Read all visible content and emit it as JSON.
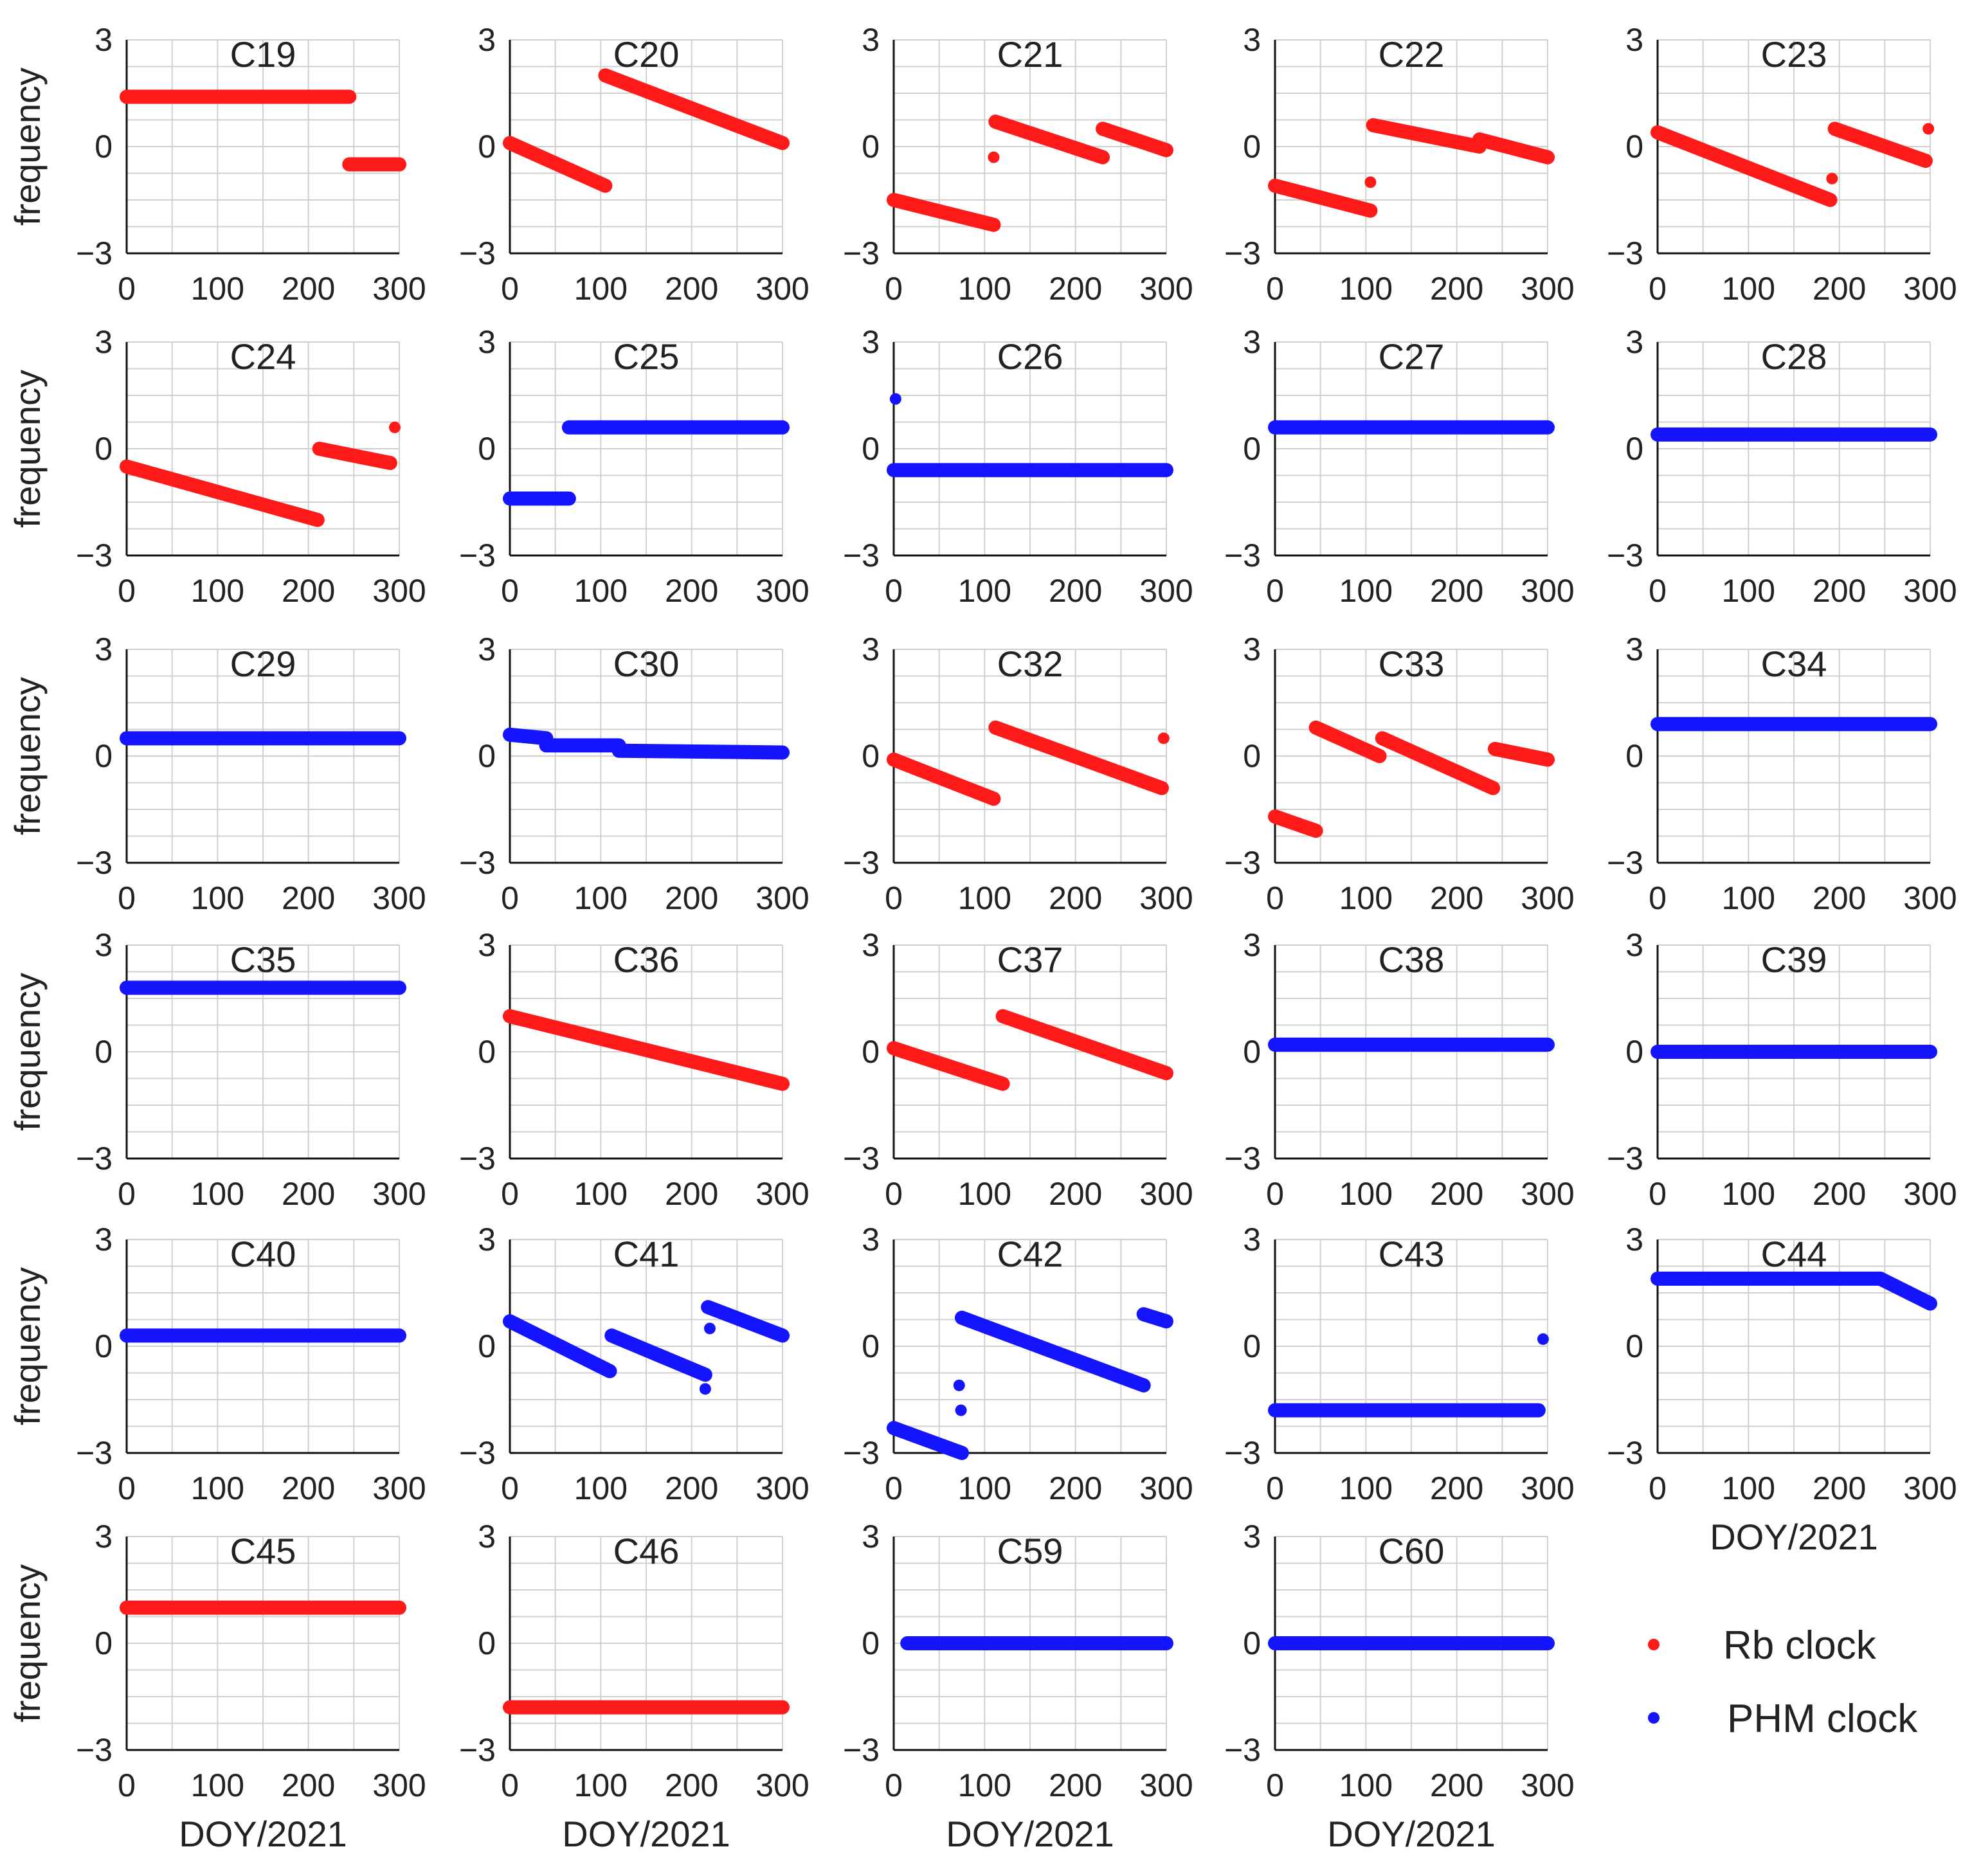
{
  "figure": {
    "xlabel": "DOY/2021",
    "ylabel": "frequency",
    "y_ticks": [
      "3",
      "0",
      "−3"
    ],
    "x_ticks": [
      "0",
      "100",
      "200",
      "300"
    ]
  },
  "legend": {
    "items": [
      {
        "label": "Rb clock",
        "color": "#ff1a1a"
      },
      {
        "label": "PHM clock",
        "color": "#1414ff"
      }
    ]
  },
  "colors": {
    "rb": "#ff1a1a",
    "phm": "#1414ff",
    "grid": "#cfcfcf",
    "axis": "#111111"
  },
  "chart_data": [
    {
      "type": "scatter",
      "title": "C19",
      "clock": "rb",
      "xlim": [
        0,
        300
      ],
      "ylim": [
        -3,
        3
      ],
      "segments": [
        [
          0,
          1.4,
          245,
          1.4
        ],
        [
          245,
          -0.5,
          300,
          -0.5
        ]
      ]
    },
    {
      "type": "scatter",
      "title": "C20",
      "clock": "rb",
      "xlim": [
        0,
        300
      ],
      "ylim": [
        -3,
        3
      ],
      "segments": [
        [
          0,
          0.1,
          105,
          -1.1
        ],
        [
          105,
          2.0,
          300,
          0.1
        ]
      ]
    },
    {
      "type": "scatter",
      "title": "C21",
      "clock": "rb",
      "xlim": [
        0,
        300
      ],
      "ylim": [
        -3,
        3
      ],
      "segments": [
        [
          0,
          -1.5,
          110,
          -2.2
        ],
        [
          112,
          0.7,
          230,
          -0.3
        ],
        [
          230,
          0.5,
          300,
          -0.1
        ]
      ],
      "points": [
        [
          110,
          -0.3
        ]
      ]
    },
    {
      "type": "scatter",
      "title": "C22",
      "clock": "rb",
      "xlim": [
        0,
        300
      ],
      "ylim": [
        -3,
        3
      ],
      "segments": [
        [
          0,
          -1.1,
          105,
          -1.8
        ],
        [
          108,
          0.6,
          225,
          0.0
        ],
        [
          225,
          0.2,
          300,
          -0.3
        ]
      ],
      "points": [
        [
          105,
          -1.0
        ]
      ]
    },
    {
      "type": "scatter",
      "title": "C23",
      "clock": "rb",
      "xlim": [
        0,
        300
      ],
      "ylim": [
        -3,
        3
      ],
      "segments": [
        [
          0,
          0.4,
          190,
          -1.5
        ],
        [
          195,
          0.5,
          295,
          -0.4
        ]
      ],
      "points": [
        [
          192,
          -0.9
        ],
        [
          298,
          0.5
        ]
      ]
    },
    {
      "type": "scatter",
      "title": "C24",
      "clock": "rb",
      "xlim": [
        0,
        300
      ],
      "ylim": [
        -3,
        3
      ],
      "segments": [
        [
          0,
          -0.5,
          210,
          -2.0
        ],
        [
          212,
          0.0,
          290,
          -0.4
        ]
      ],
      "points": [
        [
          295,
          0.6
        ]
      ]
    },
    {
      "type": "scatter",
      "title": "C25",
      "clock": "phm",
      "xlim": [
        0,
        300
      ],
      "ylim": [
        -3,
        3
      ],
      "segments": [
        [
          0,
          -1.4,
          65,
          -1.4
        ],
        [
          65,
          0.6,
          300,
          0.6
        ]
      ]
    },
    {
      "type": "scatter",
      "title": "C26",
      "clock": "phm",
      "xlim": [
        0,
        300
      ],
      "ylim": [
        -3,
        3
      ],
      "segments": [
        [
          0,
          -0.6,
          300,
          -0.6
        ]
      ],
      "points": [
        [
          2,
          1.4
        ]
      ]
    },
    {
      "type": "scatter",
      "title": "C27",
      "clock": "phm",
      "xlim": [
        0,
        300
      ],
      "ylim": [
        -3,
        3
      ],
      "segments": [
        [
          0,
          0.6,
          300,
          0.6
        ]
      ]
    },
    {
      "type": "scatter",
      "title": "C28",
      "clock": "phm",
      "xlim": [
        0,
        300
      ],
      "ylim": [
        -3,
        3
      ],
      "segments": [
        [
          0,
          0.4,
          300,
          0.4
        ]
      ]
    },
    {
      "type": "scatter",
      "title": "C29",
      "clock": "phm",
      "xlim": [
        0,
        300
      ],
      "ylim": [
        -3,
        3
      ],
      "segments": [
        [
          0,
          0.5,
          300,
          0.5
        ]
      ]
    },
    {
      "type": "scatter",
      "title": "C30",
      "clock": "phm",
      "xlim": [
        0,
        300
      ],
      "ylim": [
        -3,
        3
      ],
      "segments": [
        [
          0,
          0.6,
          40,
          0.5
        ],
        [
          40,
          0.3,
          120,
          0.3
        ],
        [
          120,
          0.15,
          300,
          0.1
        ]
      ]
    },
    {
      "type": "scatter",
      "title": "C32",
      "clock": "rb",
      "xlim": [
        0,
        300
      ],
      "ylim": [
        -3,
        3
      ],
      "segments": [
        [
          0,
          -0.1,
          110,
          -1.2
        ],
        [
          112,
          0.8,
          295,
          -0.9
        ]
      ],
      "points": [
        [
          297,
          0.5
        ]
      ]
    },
    {
      "type": "scatter",
      "title": "C33",
      "clock": "rb",
      "xlim": [
        0,
        300
      ],
      "ylim": [
        -3,
        3
      ],
      "segments": [
        [
          0,
          -1.7,
          45,
          -2.1
        ],
        [
          45,
          0.8,
          115,
          0.0
        ],
        [
          118,
          0.5,
          240,
          -0.9
        ],
        [
          242,
          0.2,
          300,
          -0.1
        ]
      ]
    },
    {
      "type": "scatter",
      "title": "C34",
      "clock": "phm",
      "xlim": [
        0,
        300
      ],
      "ylim": [
        -3,
        3
      ],
      "segments": [
        [
          0,
          0.9,
          300,
          0.9
        ]
      ]
    },
    {
      "type": "scatter",
      "title": "C35",
      "clock": "phm",
      "xlim": [
        0,
        300
      ],
      "ylim": [
        -3,
        3
      ],
      "segments": [
        [
          0,
          1.8,
          300,
          1.8
        ]
      ]
    },
    {
      "type": "scatter",
      "title": "C36",
      "clock": "rb",
      "xlim": [
        0,
        300
      ],
      "ylim": [
        -3,
        3
      ],
      "segments": [
        [
          0,
          1.0,
          300,
          -0.9
        ]
      ]
    },
    {
      "type": "scatter",
      "title": "C37",
      "clock": "rb",
      "xlim": [
        0,
        300
      ],
      "ylim": [
        -3,
        3
      ],
      "segments": [
        [
          0,
          0.1,
          120,
          -0.9
        ],
        [
          120,
          1.0,
          300,
          -0.6
        ]
      ]
    },
    {
      "type": "scatter",
      "title": "C38",
      "clock": "phm",
      "xlim": [
        0,
        300
      ],
      "ylim": [
        -3,
        3
      ],
      "segments": [
        [
          0,
          0.2,
          300,
          0.2
        ]
      ]
    },
    {
      "type": "scatter",
      "title": "C39",
      "clock": "phm",
      "xlim": [
        0,
        300
      ],
      "ylim": [
        -3,
        3
      ],
      "segments": [
        [
          0,
          0.0,
          300,
          0.0
        ]
      ]
    },
    {
      "type": "scatter",
      "title": "C40",
      "clock": "phm",
      "xlim": [
        0,
        300
      ],
      "ylim": [
        -3,
        3
      ],
      "segments": [
        [
          0,
          0.3,
          300,
          0.3
        ]
      ]
    },
    {
      "type": "scatter",
      "title": "C41",
      "clock": "phm",
      "xlim": [
        0,
        300
      ],
      "ylim": [
        -3,
        3
      ],
      "segments": [
        [
          0,
          0.7,
          110,
          -0.7
        ],
        [
          112,
          0.3,
          215,
          -0.8
        ],
        [
          218,
          1.1,
          300,
          0.3
        ]
      ],
      "points": [
        [
          215,
          -1.2
        ],
        [
          220,
          0.5
        ]
      ]
    },
    {
      "type": "scatter",
      "title": "C42",
      "clock": "phm",
      "xlim": [
        0,
        300
      ],
      "ylim": [
        -3,
        3
      ],
      "segments": [
        [
          0,
          -2.3,
          75,
          -3.0
        ],
        [
          75,
          0.8,
          275,
          -1.1
        ],
        [
          275,
          0.9,
          300,
          0.7
        ]
      ],
      "points": [
        [
          72,
          -1.1
        ],
        [
          74,
          -1.8
        ]
      ]
    },
    {
      "type": "scatter",
      "title": "C43",
      "clock": "phm",
      "xlim": [
        0,
        300
      ],
      "ylim": [
        -3,
        3
      ],
      "segments": [
        [
          0,
          -1.8,
          290,
          -1.8
        ]
      ],
      "points": [
        [
          295,
          0.2
        ]
      ]
    },
    {
      "type": "scatter",
      "title": "C44",
      "clock": "phm",
      "xlim": [
        0,
        300
      ],
      "ylim": [
        -3,
        3
      ],
      "segments": [
        [
          0,
          1.9,
          245,
          1.9
        ],
        [
          245,
          1.9,
          300,
          1.2
        ]
      ]
    },
    {
      "type": "scatter",
      "title": "C45",
      "clock": "rb",
      "xlim": [
        0,
        300
      ],
      "ylim": [
        -3,
        3
      ],
      "segments": [
        [
          0,
          1.0,
          300,
          1.0
        ]
      ]
    },
    {
      "type": "scatter",
      "title": "C46",
      "clock": "rb",
      "xlim": [
        0,
        300
      ],
      "ylim": [
        -3,
        3
      ],
      "segments": [
        [
          0,
          -1.8,
          300,
          -1.8
        ]
      ]
    },
    {
      "type": "scatter",
      "title": "C59",
      "clock": "phm",
      "xlim": [
        0,
        300
      ],
      "ylim": [
        -3,
        3
      ],
      "segments": [
        [
          15,
          0.0,
          300,
          0.0
        ]
      ]
    },
    {
      "type": "scatter",
      "title": "C60",
      "clock": "phm",
      "xlim": [
        0,
        300
      ],
      "ylim": [
        -3,
        3
      ],
      "segments": [
        [
          0,
          0.0,
          300,
          0.0
        ]
      ]
    }
  ]
}
